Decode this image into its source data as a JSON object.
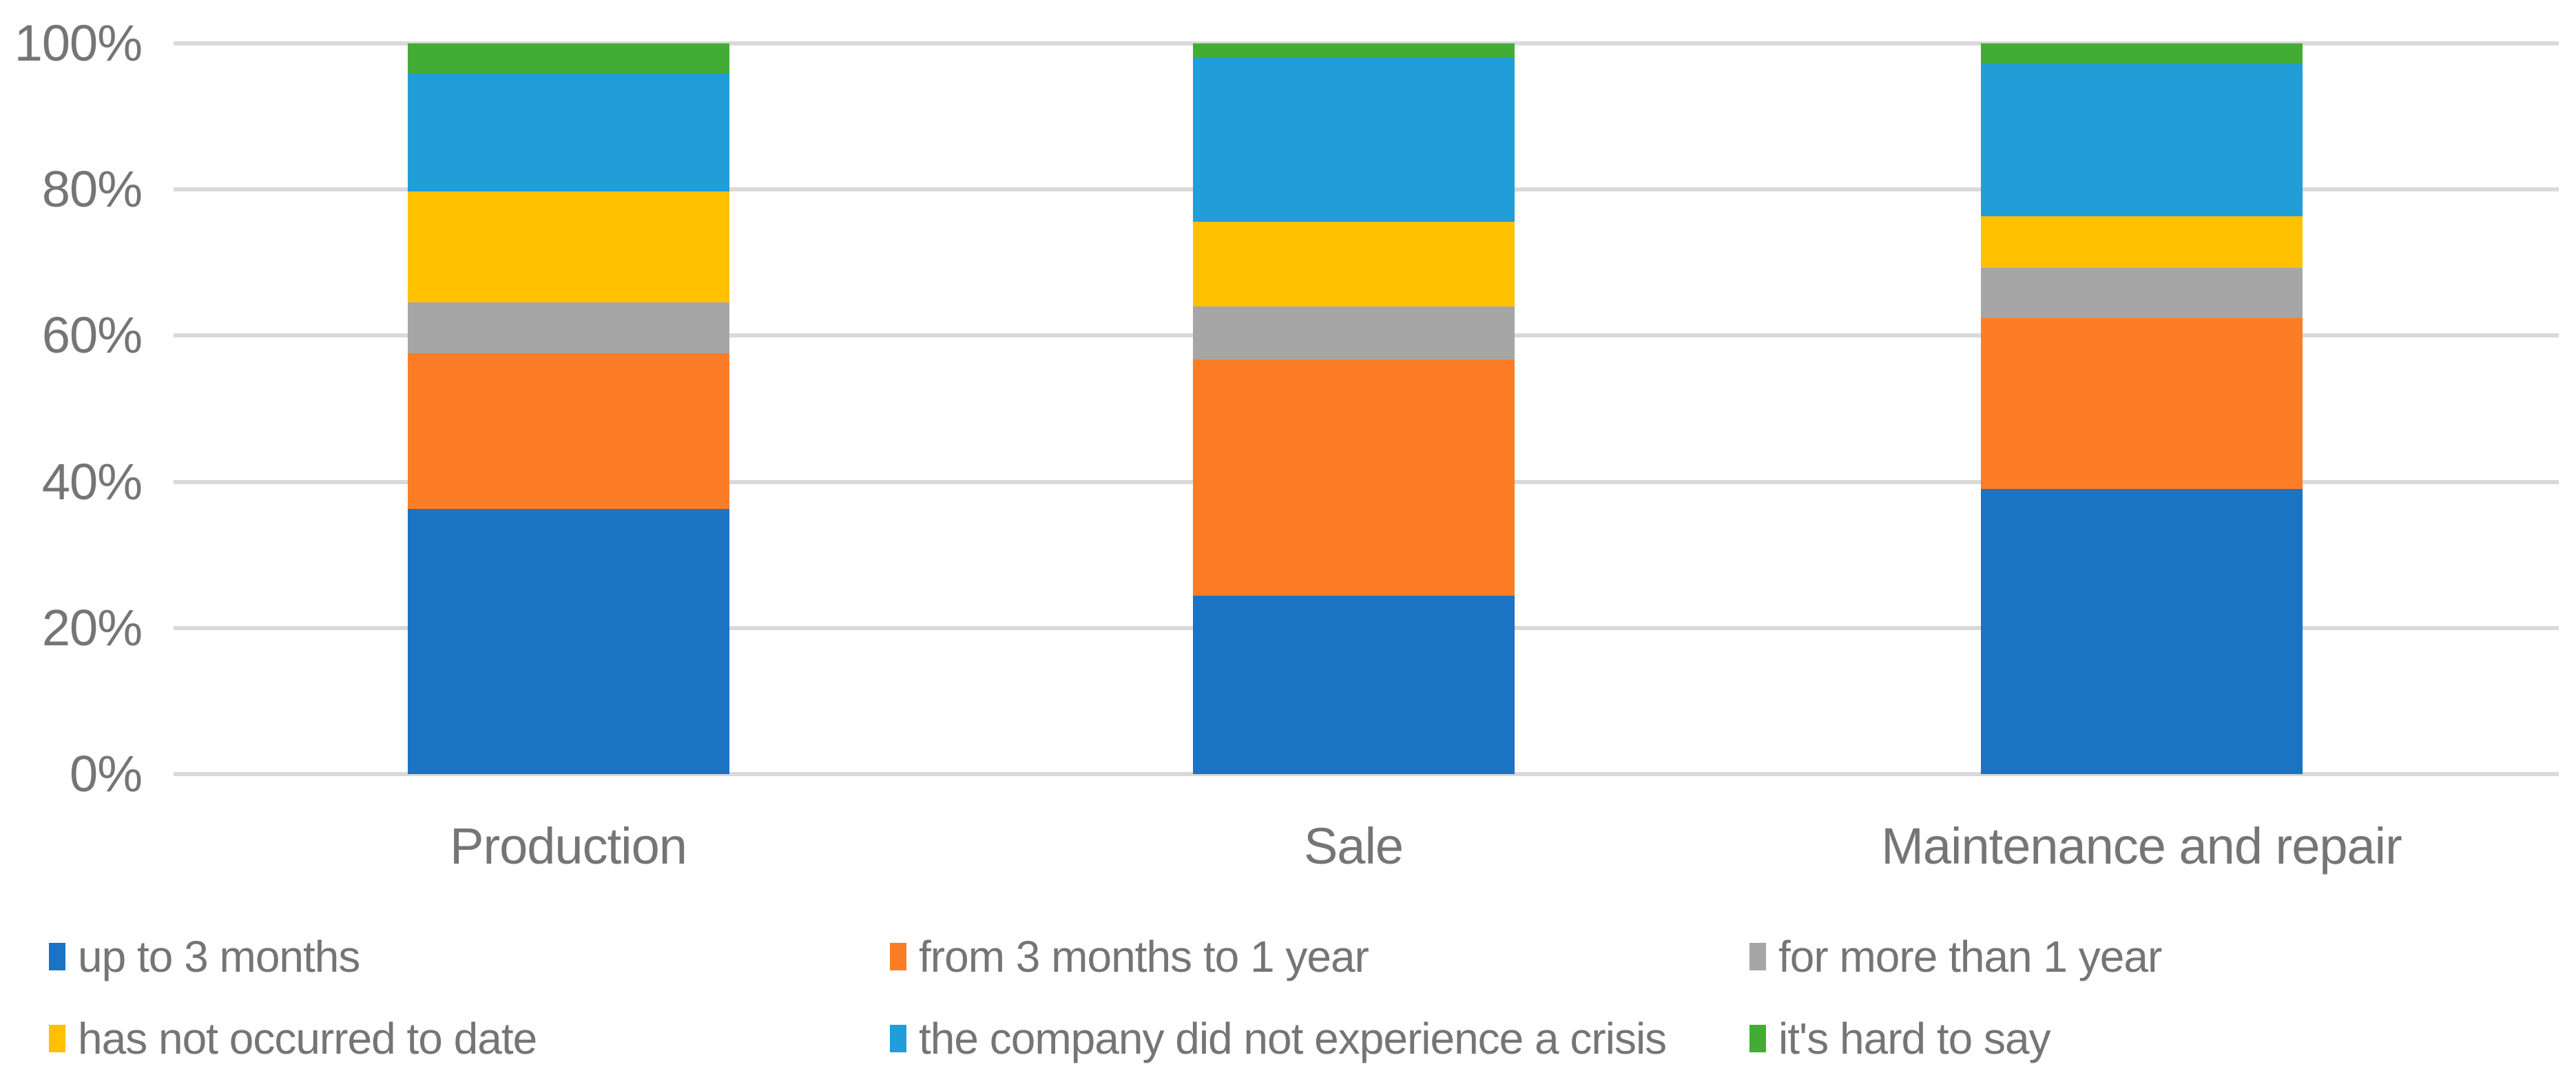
{
  "chart_data": {
    "type": "bar",
    "variant": "stacked-100-percent-column",
    "title": "",
    "xlabel": "",
    "ylabel": "",
    "categories": [
      "Production",
      "Sale",
      "Maintenance and repair"
    ],
    "series": [
      {
        "name": "up to 3 months",
        "color": "#1B73C4",
        "values": [
          36.3,
          24.4,
          39.0
        ]
      },
      {
        "name": "from 3 months to 1 year",
        "color": "#FC7D26",
        "values": [
          21.3,
          32.3,
          23.4
        ]
      },
      {
        "name": "for more than 1 year",
        "color": "#A6A6A6",
        "values": [
          7.0,
          7.3,
          6.9
        ]
      },
      {
        "name": "has not occurred to date",
        "color": "#FFC000",
        "values": [
          15.1,
          11.6,
          7.0
        ]
      },
      {
        "name": "the company did not experience a crisis",
        "color": "#219DD8",
        "values": [
          16.2,
          22.5,
          20.9
        ]
      },
      {
        "name": "it's hard to say",
        "color": "#43AC34",
        "values": [
          4.1,
          1.9,
          2.8
        ]
      }
    ],
    "y_ticks": [
      {
        "value": 100,
        "label": "100%"
      },
      {
        "value": 80,
        "label": "80%"
      },
      {
        "value": 60,
        "label": "60%"
      },
      {
        "value": 40,
        "label": "40%"
      },
      {
        "value": 20,
        "label": "20%"
      },
      {
        "value": 0,
        "label": "0%"
      }
    ],
    "ylim": [
      0,
      100
    ],
    "grid": true,
    "legend_position": "bottom"
  },
  "colors": {
    "gridline": "#D9D9D9",
    "axis_text": "#757575",
    "legend_text": "#757575",
    "background": "#FFFFFF"
  }
}
